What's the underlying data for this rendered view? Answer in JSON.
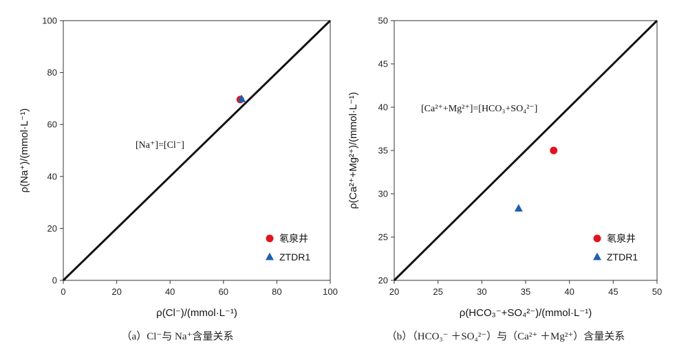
{
  "chart_data": [
    {
      "type": "scatter",
      "xlabel": "ρ(Cl⁻)/(mmol·L⁻¹)",
      "ylabel": "ρ(Na⁺)/(mmol·L⁻¹)",
      "xlim": [
        0,
        100
      ],
      "ylim": [
        0,
        100
      ],
      "xticks": [
        0,
        20,
        40,
        60,
        80,
        100
      ],
      "yticks": [
        0,
        20,
        40,
        60,
        80,
        100
      ],
      "reference_line": {
        "label": "[Na⁺]=[Cl⁻]",
        "from": [
          0,
          0
        ],
        "to": [
          100,
          100
        ]
      },
      "series": [
        {
          "name": "氡泉井",
          "marker": "circle",
          "color": "#e0141e",
          "points": [
            [
              66.3,
              69.6
            ]
          ]
        },
        {
          "name": "ZTDR1",
          "marker": "triangle",
          "color": "#1f5fb0",
          "points": [
            [
              66.8,
              69.8
            ]
          ]
        }
      ],
      "legend": "bottom-right",
      "caption": "（a）Cl⁻与 Na⁺含量关系"
    },
    {
      "type": "scatter",
      "xlabel": "ρ(HCO₃⁻+SO₄²⁻)/(mmol·L⁻¹)",
      "ylabel": "ρ(Ca²⁺+Mg²⁺)/(mmol·L⁻¹)",
      "xlim": [
        20,
        50
      ],
      "ylim": [
        20,
        50
      ],
      "xticks": [
        20,
        25,
        30,
        35,
        40,
        45,
        50
      ],
      "yticks": [
        20,
        25,
        30,
        35,
        40,
        45,
        50
      ],
      "reference_line": {
        "label": "[Ca²⁺+Mg²⁺]=[HCO₃+SO₄²⁻]",
        "from": [
          20,
          20
        ],
        "to": [
          50,
          50
        ]
      },
      "series": [
        {
          "name": "氡泉井",
          "marker": "circle",
          "color": "#e0141e",
          "points": [
            [
              38.2,
              35.0
            ]
          ]
        },
        {
          "name": "ZTDR1",
          "marker": "triangle",
          "color": "#1f5fb0",
          "points": [
            [
              34.2,
              28.3
            ]
          ]
        }
      ],
      "legend": "bottom-right",
      "caption": "（b）（HCO₃⁻ ＋SO₄²⁻）与（Ca²⁺ ＋Mg²⁺）含量关系"
    }
  ]
}
